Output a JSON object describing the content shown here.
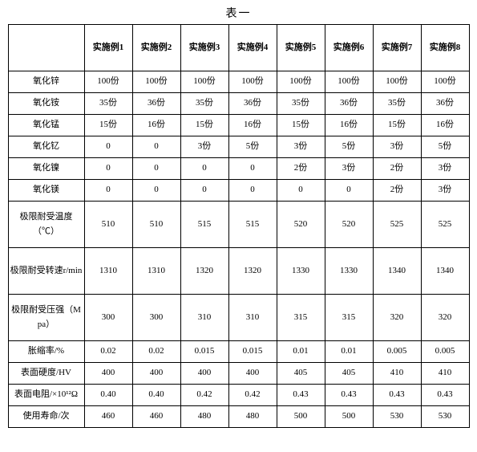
{
  "title": "表一",
  "columns": [
    "实施例1",
    "实施例2",
    "实施例3",
    "实施例4",
    "实施例5",
    "实施例6",
    "实施例7",
    "实施例8"
  ],
  "rows": [
    {
      "label": "氧化锌",
      "vals": [
        "100份",
        "100份",
        "100份",
        "100份",
        "100份",
        "100份",
        "100份",
        "100份"
      ],
      "h": "s"
    },
    {
      "label": "氧化铵",
      "vals": [
        "35份",
        "36份",
        "35份",
        "36份",
        "35份",
        "36份",
        "35份",
        "36份"
      ],
      "h": "s"
    },
    {
      "label": "氧化锰",
      "vals": [
        "15份",
        "16份",
        "15份",
        "16份",
        "15份",
        "16份",
        "15份",
        "16份"
      ],
      "h": "s"
    },
    {
      "label": "氧化钇",
      "vals": [
        "0",
        "0",
        "3份",
        "5份",
        "3份",
        "5份",
        "3份",
        "5份"
      ],
      "h": "s"
    },
    {
      "label": "氧化镍",
      "vals": [
        "0",
        "0",
        "0",
        "0",
        "2份",
        "3份",
        "2份",
        "3份"
      ],
      "h": "s"
    },
    {
      "label": "氧化镁",
      "vals": [
        "0",
        "0",
        "0",
        "0",
        "0",
        "0",
        "2份",
        "3份"
      ],
      "h": "s"
    },
    {
      "label": "极限耐受温度（℃）",
      "vals": [
        "510",
        "510",
        "515",
        "515",
        "520",
        "520",
        "525",
        "525"
      ],
      "h": "b"
    },
    {
      "label": "极限耐受转速r/min",
      "vals": [
        "1310",
        "1310",
        "1320",
        "1320",
        "1330",
        "1330",
        "1340",
        "1340"
      ],
      "h": "b"
    },
    {
      "label": "极限耐受压强（Mpa）",
      "vals": [
        "300",
        "300",
        "310",
        "310",
        "315",
        "315",
        "320",
        "320"
      ],
      "h": "b"
    },
    {
      "label": "胀缩率/%",
      "vals": [
        "0.02",
        "0.02",
        "0.015",
        "0.015",
        "0.01",
        "0.01",
        "0.005",
        "0.005"
      ],
      "h": "s"
    },
    {
      "label": "表面硬度/HV",
      "vals": [
        "400",
        "400",
        "400",
        "400",
        "405",
        "405",
        "410",
        "410"
      ],
      "h": "s"
    },
    {
      "label": "表面电阻/×10¹²Ω",
      "vals": [
        "0.40",
        "0.40",
        "0.42",
        "0.42",
        "0.43",
        "0.43",
        "0.43",
        "0.43"
      ],
      "h": "s"
    },
    {
      "label": "使用寿命/次",
      "vals": [
        "460",
        "460",
        "480",
        "480",
        "500",
        "500",
        "530",
        "530"
      ],
      "h": "s"
    }
  ]
}
